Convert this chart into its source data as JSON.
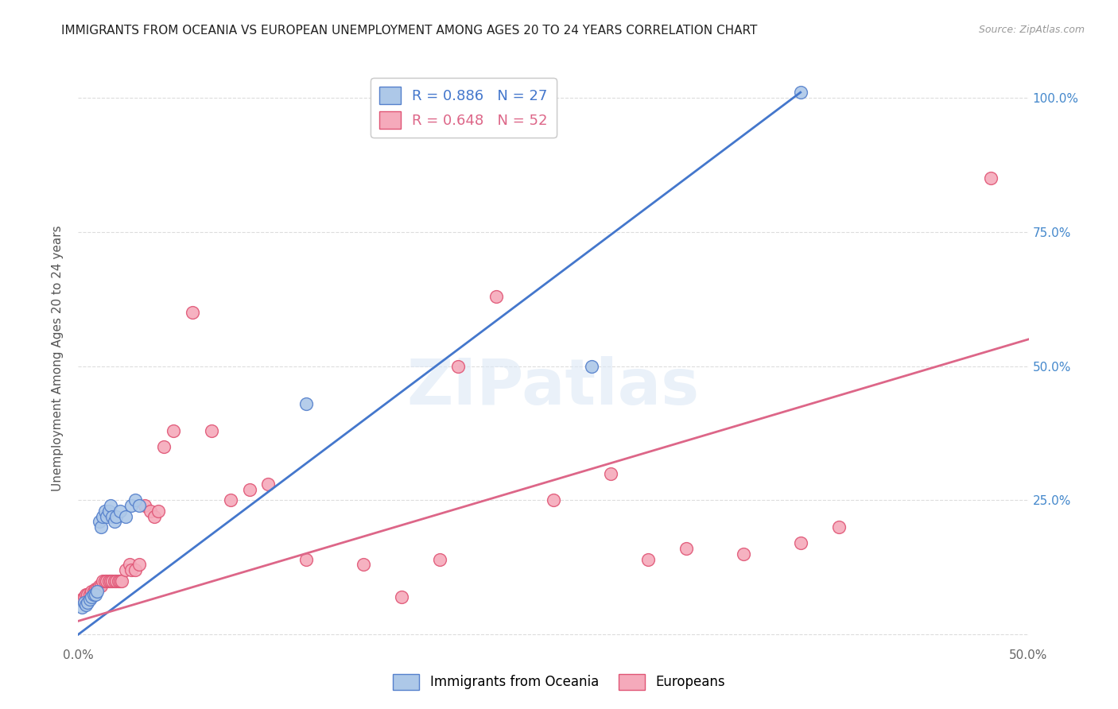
{
  "title": "IMMIGRANTS FROM OCEANIA VS EUROPEAN UNEMPLOYMENT AMONG AGES 20 TO 24 YEARS CORRELATION CHART",
  "source": "Source: ZipAtlas.com",
  "ylabel": "Unemployment Among Ages 20 to 24 years",
  "xlim": [
    0,
    0.5
  ],
  "ylim": [
    -0.02,
    1.05
  ],
  "x_ticks": [
    0.0,
    0.1,
    0.2,
    0.3,
    0.4,
    0.5
  ],
  "x_tick_labels": [
    "0.0%",
    "",
    "",
    "",
    "",
    "50.0%"
  ],
  "y_ticks": [
    0.0,
    0.25,
    0.5,
    0.75,
    1.0
  ],
  "y_tick_labels_right": [
    "",
    "25.0%",
    "50.0%",
    "75.0%",
    "100.0%"
  ],
  "background_color": "#ffffff",
  "grid_color": "#dddddd",
  "oceania_color": "#adc8e8",
  "european_color": "#f5aabb",
  "oceania_edge_color": "#5580cc",
  "european_edge_color": "#e05575",
  "oceania_R": 0.886,
  "oceania_N": 27,
  "european_R": 0.648,
  "european_N": 52,
  "oceania_line_color": "#4477cc",
  "european_line_color": "#dd6688",
  "oceania_line_x": [
    0.0,
    0.38
  ],
  "oceania_line_y": [
    0.0,
    1.01
  ],
  "european_line_x": [
    0.0,
    0.5
  ],
  "european_line_y": [
    0.025,
    0.55
  ],
  "oceania_scatter_x": [
    0.002,
    0.003,
    0.004,
    0.005,
    0.006,
    0.007,
    0.008,
    0.009,
    0.01,
    0.011,
    0.012,
    0.013,
    0.014,
    0.015,
    0.016,
    0.017,
    0.018,
    0.019,
    0.02,
    0.022,
    0.025,
    0.028,
    0.03,
    0.032,
    0.12,
    0.27,
    0.38
  ],
  "oceania_scatter_y": [
    0.05,
    0.06,
    0.055,
    0.06,
    0.065,
    0.07,
    0.075,
    0.075,
    0.08,
    0.21,
    0.2,
    0.22,
    0.23,
    0.22,
    0.23,
    0.24,
    0.22,
    0.21,
    0.22,
    0.23,
    0.22,
    0.24,
    0.25,
    0.24,
    0.43,
    0.5,
    1.01
  ],
  "european_scatter_x": [
    0.002,
    0.003,
    0.004,
    0.005,
    0.006,
    0.007,
    0.008,
    0.009,
    0.01,
    0.011,
    0.012,
    0.013,
    0.014,
    0.015,
    0.016,
    0.017,
    0.018,
    0.019,
    0.02,
    0.021,
    0.022,
    0.023,
    0.025,
    0.027,
    0.028,
    0.03,
    0.032,
    0.035,
    0.038,
    0.04,
    0.042,
    0.045,
    0.05,
    0.06,
    0.07,
    0.08,
    0.09,
    0.1,
    0.12,
    0.15,
    0.17,
    0.19,
    0.2,
    0.22,
    0.25,
    0.28,
    0.3,
    0.32,
    0.35,
    0.38,
    0.4,
    0.48
  ],
  "european_scatter_y": [
    0.065,
    0.07,
    0.075,
    0.075,
    0.075,
    0.08,
    0.08,
    0.085,
    0.085,
    0.09,
    0.09,
    0.1,
    0.1,
    0.1,
    0.1,
    0.1,
    0.1,
    0.1,
    0.1,
    0.1,
    0.1,
    0.1,
    0.12,
    0.13,
    0.12,
    0.12,
    0.13,
    0.24,
    0.23,
    0.22,
    0.23,
    0.35,
    0.38,
    0.6,
    0.38,
    0.25,
    0.27,
    0.28,
    0.14,
    0.13,
    0.07,
    0.14,
    0.5,
    0.63,
    0.25,
    0.3,
    0.14,
    0.16,
    0.15,
    0.17,
    0.2,
    0.85
  ]
}
